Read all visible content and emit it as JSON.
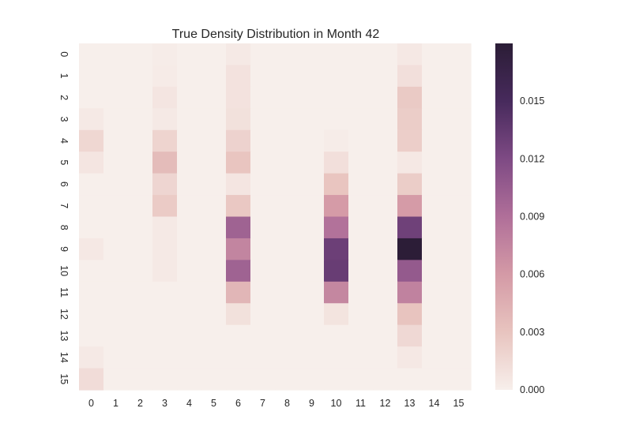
{
  "chart_data": {
    "type": "heatmap",
    "title": "True Density Distribution in Month 42",
    "xlabel": "",
    "ylabel": "",
    "x_categories": [
      "0",
      "1",
      "2",
      "3",
      "4",
      "5",
      "6",
      "7",
      "8",
      "9",
      "10",
      "11",
      "12",
      "13",
      "14",
      "15"
    ],
    "y_categories": [
      "0",
      "1",
      "2",
      "3",
      "4",
      "5",
      "6",
      "7",
      "8",
      "9",
      "10",
      "11",
      "12",
      "13",
      "14",
      "15"
    ],
    "values": [
      [
        0.0,
        0,
        0,
        0.0002,
        0,
        0,
        0.0004,
        0,
        0,
        0,
        0.0,
        0,
        0,
        0.0005,
        0,
        0
      ],
      [
        0.0,
        0,
        0,
        0.0003,
        0,
        0,
        0.0009,
        0,
        0,
        0,
        0.0,
        0,
        0,
        0.0011,
        0,
        0
      ],
      [
        0.0,
        0,
        0,
        0.0007,
        0,
        0,
        0.0009,
        0,
        0,
        0,
        0.0,
        0,
        0,
        0.0026,
        0,
        0
      ],
      [
        0.0004,
        0,
        0,
        0.0004,
        0,
        0,
        0.001,
        0,
        0,
        0,
        0.0,
        0,
        0,
        0.0024,
        0,
        0
      ],
      [
        0.0017,
        0,
        0,
        0.0019,
        0,
        0,
        0.002,
        0,
        0,
        0,
        0.0002,
        0,
        0,
        0.0023,
        0,
        0
      ],
      [
        0.0007,
        0,
        0,
        0.0036,
        0,
        0,
        0.0029,
        0,
        0,
        0,
        0.0011,
        0,
        0,
        0.0005,
        0,
        0
      ],
      [
        0.0,
        0,
        0,
        0.0018,
        0,
        0,
        0.0007,
        0,
        0,
        0,
        0.0029,
        0,
        0,
        0.0024,
        0,
        0
      ],
      [
        0.0,
        0,
        0,
        0.0025,
        0,
        0,
        0.0027,
        0,
        0,
        0,
        0.0059,
        0,
        0,
        0.0059,
        0,
        0
      ],
      [
        0.0,
        0,
        0,
        0.0004,
        0,
        0,
        0.01,
        0,
        0,
        0,
        0.0088,
        0,
        0,
        0.0128,
        0,
        0
      ],
      [
        0.0005,
        0,
        0,
        0.0004,
        0,
        0,
        0.0075,
        0,
        0,
        0,
        0.013,
        0,
        0,
        0.0179,
        0,
        0
      ],
      [
        0.0,
        0,
        0,
        0.0004,
        0,
        0,
        0.01,
        0,
        0,
        0,
        0.0132,
        0,
        0,
        0.0107,
        0,
        0
      ],
      [
        0.0,
        0,
        0,
        0.0,
        0,
        0,
        0.004,
        0,
        0,
        0,
        0.0073,
        0,
        0,
        0.0077,
        0,
        0
      ],
      [
        0.0,
        0,
        0,
        0.0,
        0,
        0,
        0.001,
        0,
        0,
        0,
        0.0008,
        0,
        0,
        0.003,
        0,
        0
      ],
      [
        0.0,
        0,
        0,
        0.0,
        0,
        0,
        0.0,
        0,
        0,
        0,
        0.0,
        0,
        0,
        0.0016,
        0,
        0
      ],
      [
        0.0004,
        0,
        0,
        0.0,
        0,
        0,
        0.0,
        0,
        0,
        0,
        0.0,
        0,
        0,
        0.0005,
        0,
        0
      ],
      [
        0.0013,
        0,
        0,
        0.0,
        0,
        0,
        0.0,
        0,
        0,
        0,
        0.0,
        0,
        0,
        0.0,
        0,
        0
      ]
    ],
    "vmin": 0.0,
    "vmax": 0.018,
    "colorbar_ticks": [
      {
        "value": 0.0,
        "label": "0.000"
      },
      {
        "value": 0.003,
        "label": "0.003"
      },
      {
        "value": 0.006,
        "label": "0.006"
      },
      {
        "value": 0.009,
        "label": "0.009"
      },
      {
        "value": 0.012,
        "label": "0.012"
      },
      {
        "value": 0.015,
        "label": "0.015"
      }
    ],
    "colormap": [
      "#f7efeb",
      "#e8c4bf",
      "#d49aa6",
      "#b06f99",
      "#7e4a84",
      "#472a5c",
      "#2b1d36"
    ],
    "grid": false
  }
}
